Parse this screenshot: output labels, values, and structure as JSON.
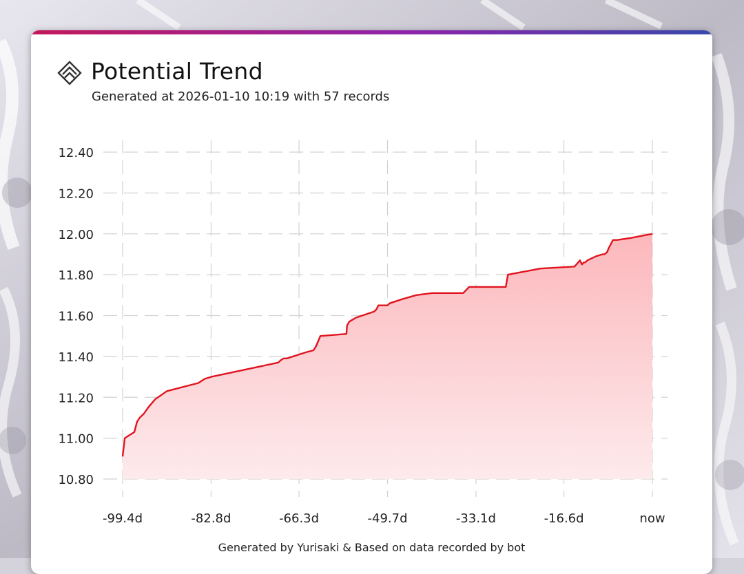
{
  "header": {
    "title": "Potential Trend",
    "subtitle": "Generated at 2026-01-10 10:19 with 57 records"
  },
  "footer": {
    "text": "Generated by Yurisaki & Based on data recorded by bot"
  },
  "colors": {
    "line": "#e0141e",
    "area_top": "#fcb8bc",
    "area_bottom": "#fdeaec",
    "grid": "#d2d2d2",
    "accent_start": "#c2185b",
    "accent_end": "#3949ab"
  },
  "chart_data": {
    "type": "area",
    "title": "Potential Trend",
    "xlabel": "",
    "ylabel": "",
    "grid": true,
    "xlim": [
      -99.4,
      0
    ],
    "ylim": [
      10.8,
      12.4
    ],
    "yticks": [
      10.8,
      11.0,
      11.2,
      11.4,
      11.6,
      11.8,
      12.0,
      12.2,
      12.4
    ],
    "ytick_labels": [
      "10.80",
      "11.00",
      "11.20",
      "11.40",
      "11.60",
      "11.80",
      "12.00",
      "12.20",
      "12.40"
    ],
    "xticks": [
      -99.4,
      -82.8,
      -66.3,
      -49.7,
      -33.1,
      -16.6,
      0
    ],
    "xtick_labels": [
      "-99.4d",
      "-82.8d",
      "-66.3d",
      "-49.7d",
      "-33.1d",
      "-16.6d",
      "now"
    ],
    "series": [
      {
        "x": [
          -99.4,
          -99.0,
          -97.2,
          -96.7,
          -96.2,
          -95.4,
          -94.6,
          -93.3,
          -91.1,
          -85.2,
          -84.0,
          -82.8,
          -70.2,
          -69.8,
          -69.2,
          -68.6,
          -65.0,
          -63.6,
          -63.1,
          -62.3,
          -57.4,
          -57.3,
          -56.9,
          -55.6,
          -52.2,
          -51.8,
          -51.4,
          -50.1,
          -49.7,
          -49.3,
          -47.0,
          -44.3,
          -41.3,
          -35.5,
          -34.4,
          -33.1,
          -27.5,
          -27.1,
          -21.0,
          -14.6,
          -13.6,
          -13.2,
          -12.9,
          -12.6,
          -12.2,
          -10.6,
          -9.3,
          -9.0,
          -8.5,
          -8.2,
          -7.8,
          -7.4,
          -6.6,
          -4.0,
          -2.0,
          -1.0,
          0.0
        ],
        "y": [
          10.91,
          11.0,
          11.03,
          11.08,
          11.1,
          11.12,
          11.15,
          11.19,
          11.23,
          11.27,
          11.29,
          11.3,
          11.37,
          11.38,
          11.39,
          11.39,
          11.42,
          11.43,
          11.45,
          11.5,
          11.51,
          11.55,
          11.57,
          11.59,
          11.62,
          11.63,
          11.65,
          11.65,
          11.65,
          11.66,
          11.68,
          11.7,
          11.71,
          11.71,
          11.74,
          11.74,
          11.74,
          11.8,
          11.83,
          11.84,
          11.87,
          11.85,
          11.86,
          11.86,
          11.87,
          11.89,
          11.9,
          11.9,
          11.91,
          11.93,
          11.95,
          11.97,
          11.97,
          11.98,
          11.99,
          11.995,
          12.0
        ]
      }
    ]
  }
}
